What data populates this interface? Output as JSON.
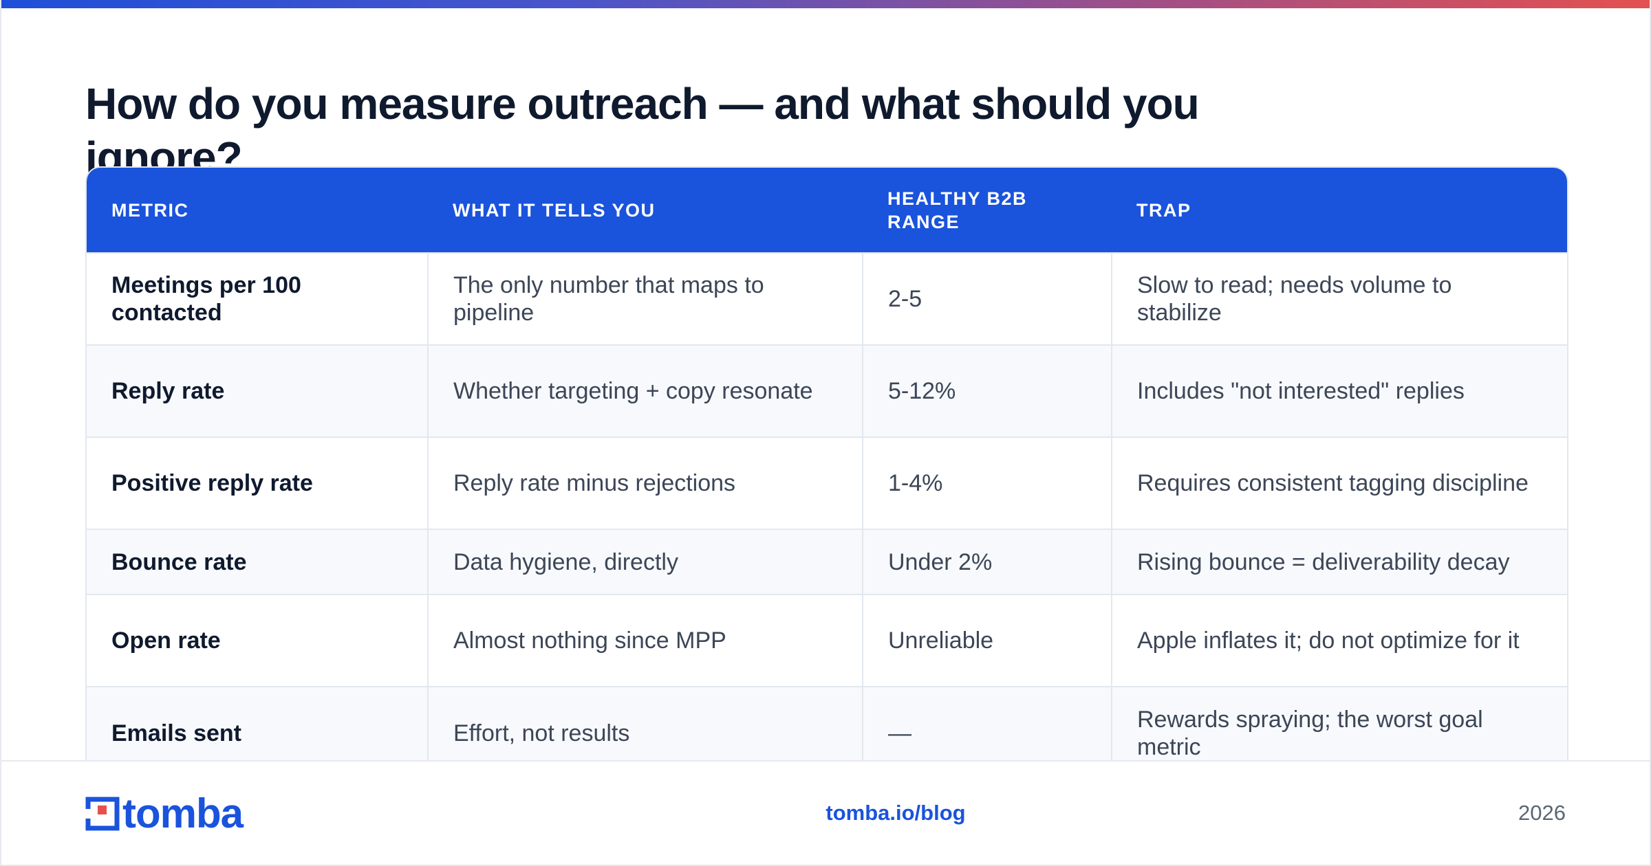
{
  "colors": {
    "accent": "#1a53dc",
    "title": "#0f1a2e",
    "logo_red": "#e4514f"
  },
  "title": "How do you measure outreach — and what should you ignore?",
  "table": {
    "headers": [
      "METRIC",
      "WHAT IT TELLS YOU",
      "HEALTHY B2B RANGE",
      "TRAP"
    ],
    "rows": [
      {
        "metric": "Meetings per 100 contacted",
        "tells": "The only number that maps to pipeline",
        "range": "2-5",
        "trap": "Slow to read; needs volume to stabilize"
      },
      {
        "metric": "Reply rate",
        "tells": "Whether targeting + copy resonate",
        "range": "5-12%",
        "trap": "Includes \"not interested\" replies"
      },
      {
        "metric": "Positive reply rate",
        "tells": "Reply rate minus rejections",
        "range": "1-4%",
        "trap": "Requires consistent tagging discipline"
      },
      {
        "metric": "Bounce rate",
        "tells": "Data hygiene, directly",
        "range": "Under 2%",
        "trap": "Rising bounce = deliverability decay"
      },
      {
        "metric": "Open rate",
        "tells": "Almost nothing since MPP",
        "range": "Unreliable",
        "trap": "Apple inflates it; do not optimize for it"
      },
      {
        "metric": "Emails sent",
        "tells": "Effort, not results",
        "range": "—",
        "trap": "Rewards spraying; the worst goal metric"
      }
    ]
  },
  "footer": {
    "logo_text": "tomba",
    "logo_icon": "tomba-logo-icon",
    "link": "tomba.io/blog",
    "year": "2026"
  }
}
